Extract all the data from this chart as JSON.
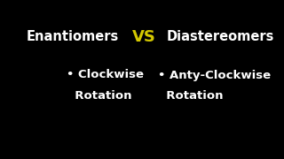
{
  "background_color": "#000000",
  "title_left": "Enantiomers",
  "title_vs": "VS",
  "title_right": "Diastereomers",
  "bullet_left_line1": "• Clockwise",
  "bullet_left_line2": "  Rotation",
  "bullet_right_line1": "• Anty-Clockwise",
  "bullet_right_line2": "  Rotation",
  "text_color_white": "#ffffff",
  "text_color_vs": "#d4c800",
  "title_fontsize": 10.5,
  "vs_fontsize": 13,
  "bullet_fontsize": 9.5
}
